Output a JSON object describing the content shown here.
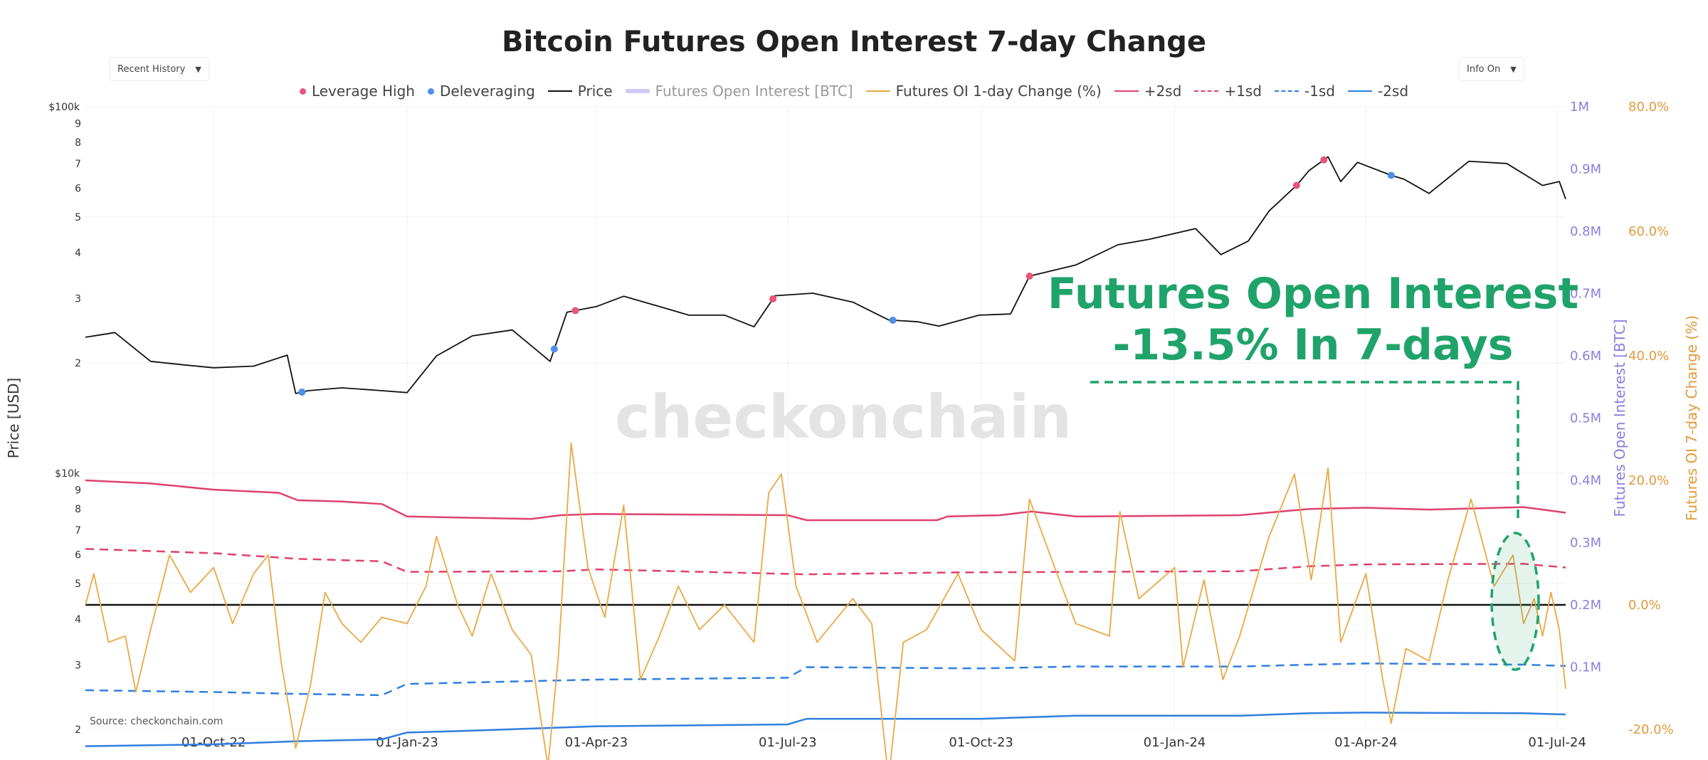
{
  "header": {
    "title": "Bitcoin Futures Open Interest 7-day Change"
  },
  "controls": {
    "left_dropdown": "Recent History",
    "right_dropdown": "Info On"
  },
  "legend": [
    {
      "label": "Leverage High",
      "kind": "dot",
      "color": "#e8557a"
    },
    {
      "label": "Deleveraging",
      "kind": "dot",
      "color": "#4f8fe6"
    },
    {
      "label": "Price",
      "kind": "line",
      "color": "#111111"
    },
    {
      "label": "Futures Open Interest [BTC]",
      "kind": "band",
      "color": "#cfc9f2",
      "muted": true
    },
    {
      "label": "Futures OI 1-day Change (%)",
      "kind": "line",
      "color": "#eaa844"
    },
    {
      "label": "+2sd",
      "kind": "line",
      "color": "#e0416d"
    },
    {
      "label": "+1sd",
      "kind": "dash",
      "color": "#e0416d"
    },
    {
      "label": "-1sd",
      "kind": "dash",
      "color": "#2f7fe0"
    },
    {
      "label": "-2sd",
      "kind": "line",
      "color": "#2f7fe0"
    }
  ],
  "annotation": {
    "line1": "Futures Open Interest",
    "line2": "-13.5% In 7-days",
    "color": "#1fa36a"
  },
  "watermark": "checkonchain",
  "source": "Source: checkonchain.com",
  "colors": {
    "price": "#111111",
    "oi_change": "#eaa844",
    "plus2": "#e0416d",
    "minus2": "#2f7fe0",
    "oi_axis": "#8a7fe0",
    "pct_axis": "#e29a3a"
  },
  "chart_data": {
    "type": "line",
    "x_ticks": [
      "01-Oct-22",
      "01-Jan-23",
      "01-Apr-23",
      "01-Jul-23",
      "01-Oct-23",
      "01-Jan-24",
      "01-Apr-24",
      "01-Jul-24"
    ],
    "x_range": [
      "2022-08-01",
      "2024-07-05"
    ],
    "y_left": {
      "label": "Price [USD]",
      "scale": "log",
      "range": [
        2000,
        100000
      ],
      "tick_labels": [
        {
          "v": 100000,
          "t": "$100k"
        },
        {
          "v": 90000,
          "t": "9"
        },
        {
          "v": 80000,
          "t": "8"
        },
        {
          "v": 70000,
          "t": "7"
        },
        {
          "v": 60000,
          "t": "6"
        },
        {
          "v": 50000,
          "t": "5"
        },
        {
          "v": 40000,
          "t": "4"
        },
        {
          "v": 30000,
          "t": "3"
        },
        {
          "v": 20000,
          "t": "2"
        },
        {
          "v": 10000,
          "t": "$10k"
        },
        {
          "v": 9000,
          "t": "9"
        },
        {
          "v": 8000,
          "t": "8"
        },
        {
          "v": 7000,
          "t": "7"
        },
        {
          "v": 6000,
          "t": "6"
        },
        {
          "v": 5000,
          "t": "5"
        },
        {
          "v": 4000,
          "t": "4"
        },
        {
          "v": 3000,
          "t": "3"
        },
        {
          "v": 2000,
          "t": "2"
        }
      ]
    },
    "y_right1": {
      "label": "Futures Open Interest [BTC]",
      "range": [
        0,
        1000000
      ],
      "ticks": [
        "0.1M",
        "0.2M",
        "0.3M",
        "0.4M",
        "0.5M",
        "0.6M",
        "0.7M",
        "0.8M",
        "0.9M",
        "1M"
      ]
    },
    "y_right2": {
      "label": "Futures OI 7-day Change (%)",
      "range": [
        -20,
        80
      ],
      "ticks": [
        "-20.0%",
        "0.0%",
        "20.0%",
        "40.0%",
        "60.0%",
        "80.0%"
      ]
    },
    "price": [
      [
        "2022-08-01",
        23500
      ],
      [
        "2022-08-15",
        24200
      ],
      [
        "2022-09-01",
        20200
      ],
      [
        "2022-09-15",
        19800
      ],
      [
        "2022-10-01",
        19400
      ],
      [
        "2022-10-20",
        19600
      ],
      [
        "2022-11-05",
        21000
      ],
      [
        "2022-11-09",
        16500
      ],
      [
        "2022-11-15",
        16800
      ],
      [
        "2022-12-01",
        17100
      ],
      [
        "2022-12-20",
        16800
      ],
      [
        "2023-01-01",
        16600
      ],
      [
        "2023-01-15",
        20900
      ],
      [
        "2023-02-01",
        23700
      ],
      [
        "2023-02-20",
        24600
      ],
      [
        "2023-03-10",
        20200
      ],
      [
        "2023-03-18",
        27500
      ],
      [
        "2023-04-01",
        28500
      ],
      [
        "2023-04-14",
        30400
      ],
      [
        "2023-05-01",
        28500
      ],
      [
        "2023-05-15",
        27000
      ],
      [
        "2023-06-01",
        27000
      ],
      [
        "2023-06-15",
        25100
      ],
      [
        "2023-06-25",
        30500
      ],
      [
        "2023-07-13",
        31000
      ],
      [
        "2023-08-01",
        29300
      ],
      [
        "2023-08-18",
        26200
      ],
      [
        "2023-09-01",
        25900
      ],
      [
        "2023-09-11",
        25200
      ],
      [
        "2023-09-30",
        27000
      ],
      [
        "2023-10-15",
        27200
      ],
      [
        "2023-10-24",
        34500
      ],
      [
        "2023-11-15",
        37000
      ],
      [
        "2023-12-05",
        42000
      ],
      [
        "2023-12-20",
        43500
      ],
      [
        "2024-01-11",
        46500
      ],
      [
        "2024-01-23",
        39500
      ],
      [
        "2024-02-05",
        43000
      ],
      [
        "2024-02-15",
        52000
      ],
      [
        "2024-02-28",
        61000
      ],
      [
        "2024-03-05",
        67000
      ],
      [
        "2024-03-14",
        73000
      ],
      [
        "2024-03-20",
        62500
      ],
      [
        "2024-03-28",
        70500
      ],
      [
        "2024-04-13",
        65000
      ],
      [
        "2024-04-19",
        63500
      ],
      [
        "2024-05-01",
        58000
      ],
      [
        "2024-05-20",
        71000
      ],
      [
        "2024-06-07",
        70000
      ],
      [
        "2024-06-24",
        61000
      ],
      [
        "2024-07-02",
        62500
      ],
      [
        "2024-07-05",
        56000
      ]
    ],
    "plus2sd": [
      [
        "2022-08-01",
        400000
      ],
      [
        "2022-09-01",
        395000
      ],
      [
        "2022-10-01",
        385000
      ],
      [
        "2022-11-01",
        380000
      ],
      [
        "2022-11-10",
        368000
      ],
      [
        "2022-12-01",
        366000
      ],
      [
        "2022-12-20",
        362000
      ],
      [
        "2023-01-01",
        342000
      ],
      [
        "2023-03-01",
        338000
      ],
      [
        "2023-03-15",
        344000
      ],
      [
        "2023-04-01",
        346000
      ],
      [
        "2023-07-01",
        344000
      ],
      [
        "2023-07-10",
        336000
      ],
      [
        "2023-09-10",
        336000
      ],
      [
        "2023-09-15",
        342000
      ],
      [
        "2023-10-10",
        344000
      ],
      [
        "2023-10-25",
        350000
      ],
      [
        "2023-11-15",
        342000
      ],
      [
        "2024-02-01",
        344000
      ],
      [
        "2024-03-05",
        354000
      ],
      [
        "2024-04-01",
        356000
      ],
      [
        "2024-05-01",
        353000
      ],
      [
        "2024-06-15",
        357000
      ],
      [
        "2024-07-05",
        348000
      ]
    ],
    "plus1sd": [
      [
        "2022-08-01",
        290000
      ],
      [
        "2022-10-01",
        283000
      ],
      [
        "2022-11-10",
        274000
      ],
      [
        "2022-12-20",
        270000
      ],
      [
        "2023-01-01",
        253000
      ],
      [
        "2023-03-15",
        254000
      ],
      [
        "2023-04-01",
        257000
      ],
      [
        "2023-07-10",
        249000
      ],
      [
        "2023-09-15",
        252000
      ],
      [
        "2023-11-15",
        253000
      ],
      [
        "2024-02-01",
        254000
      ],
      [
        "2024-03-05",
        262000
      ],
      [
        "2024-04-01",
        265000
      ],
      [
        "2024-06-15",
        266000
      ],
      [
        "2024-07-05",
        260000
      ]
    ],
    "minus1sd": [
      [
        "2022-08-01",
        63000
      ],
      [
        "2022-10-01",
        60000
      ],
      [
        "2022-11-10",
        57000
      ],
      [
        "2022-12-20",
        55000
      ],
      [
        "2023-01-01",
        73000
      ],
      [
        "2023-04-01",
        80000
      ],
      [
        "2023-07-01",
        83000
      ],
      [
        "2023-07-10",
        100000
      ],
      [
        "2023-10-01",
        98000
      ],
      [
        "2023-11-15",
        101000
      ],
      [
        "2024-02-01",
        101000
      ],
      [
        "2024-03-05",
        104000
      ],
      [
        "2024-04-01",
        106000
      ],
      [
        "2024-06-15",
        104000
      ],
      [
        "2024-07-05",
        102000
      ]
    ],
    "minus2sd": [
      [
        "2022-08-01",
        -27000
      ],
      [
        "2022-10-01",
        -24000
      ],
      [
        "2022-11-10",
        -19000
      ],
      [
        "2022-12-20",
        -16000
      ],
      [
        "2023-01-01",
        -5000
      ],
      [
        "2023-02-01",
        -2000
      ],
      [
        "2023-04-01",
        5000
      ],
      [
        "2023-07-01",
        8000
      ],
      [
        "2023-07-10",
        17000
      ],
      [
        "2023-10-01",
        17000
      ],
      [
        "2023-11-15",
        22000
      ],
      [
        "2024-02-01",
        22000
      ],
      [
        "2024-03-05",
        26000
      ],
      [
        "2024-04-01",
        27000
      ],
      [
        "2024-06-15",
        26000
      ],
      [
        "2024-07-05",
        24000
      ]
    ],
    "oi_7d_change_pct": [
      [
        "2022-08-01",
        0
      ],
      [
        "2022-08-05",
        5
      ],
      [
        "2022-08-12",
        -6
      ],
      [
        "2022-08-20",
        -5
      ],
      [
        "2022-08-25",
        -14
      ],
      [
        "2022-09-01",
        -4
      ],
      [
        "2022-09-10",
        8
      ],
      [
        "2022-09-20",
        2
      ],
      [
        "2022-10-01",
        6
      ],
      [
        "2022-10-10",
        -3
      ],
      [
        "2022-10-20",
        5
      ],
      [
        "2022-10-27",
        8
      ],
      [
        "2022-11-02",
        -9
      ],
      [
        "2022-11-09",
        -23
      ],
      [
        "2022-11-16",
        -13
      ],
      [
        "2022-11-23",
        2
      ],
      [
        "2022-12-01",
        -3
      ],
      [
        "2022-12-10",
        -6
      ],
      [
        "2022-12-20",
        -2
      ],
      [
        "2023-01-01",
        -3
      ],
      [
        "2023-01-10",
        3
      ],
      [
        "2023-01-15",
        11
      ],
      [
        "2023-01-25",
        0
      ],
      [
        "2023-02-01",
        -5
      ],
      [
        "2023-02-10",
        5
      ],
      [
        "2023-02-20",
        -4
      ],
      [
        "2023-03-01",
        -8
      ],
      [
        "2023-03-09",
        -26
      ],
      [
        "2023-03-14",
        -8
      ],
      [
        "2023-03-20",
        26
      ],
      [
        "2023-03-28",
        6
      ],
      [
        "2023-04-05",
        -2
      ],
      [
        "2023-04-14",
        16
      ],
      [
        "2023-04-22",
        -12
      ],
      [
        "2023-05-01",
        -5
      ],
      [
        "2023-05-10",
        3
      ],
      [
        "2023-05-20",
        -4
      ],
      [
        "2023-06-01",
        0
      ],
      [
        "2023-06-15",
        -6
      ],
      [
        "2023-06-22",
        18
      ],
      [
        "2023-06-28",
        21
      ],
      [
        "2023-07-05",
        3
      ],
      [
        "2023-07-15",
        -6
      ],
      [
        "2023-08-01",
        1
      ],
      [
        "2023-08-10",
        -3
      ],
      [
        "2023-08-18",
        -28
      ],
      [
        "2023-08-25",
        -6
      ],
      [
        "2023-09-05",
        -4
      ],
      [
        "2023-09-20",
        5
      ],
      [
        "2023-10-01",
        -4
      ],
      [
        "2023-10-17",
        -9
      ],
      [
        "2023-10-24",
        17
      ],
      [
        "2023-11-05",
        6
      ],
      [
        "2023-11-15",
        -3
      ],
      [
        "2023-12-01",
        -5
      ],
      [
        "2023-12-06",
        15
      ],
      [
        "2023-12-15",
        1
      ],
      [
        "2024-01-01",
        6
      ],
      [
        "2024-01-05",
        -10
      ],
      [
        "2024-01-15",
        4
      ],
      [
        "2024-01-24",
        -12
      ],
      [
        "2024-02-01",
        -5
      ],
      [
        "2024-02-15",
        11
      ],
      [
        "2024-02-27",
        21
      ],
      [
        "2024-03-06",
        4
      ],
      [
        "2024-03-14",
        22
      ],
      [
        "2024-03-20",
        -6
      ],
      [
        "2024-04-01",
        5
      ],
      [
        "2024-04-09",
        -12
      ],
      [
        "2024-04-13",
        -19
      ],
      [
        "2024-04-20",
        -7
      ],
      [
        "2024-05-01",
        -9
      ],
      [
        "2024-05-10",
        4
      ],
      [
        "2024-05-21",
        17
      ],
      [
        "2024-06-01",
        3
      ],
      [
        "2024-06-10",
        8
      ],
      [
        "2024-06-15",
        -3
      ],
      [
        "2024-06-20",
        1
      ],
      [
        "2024-06-24",
        -5
      ],
      [
        "2024-06-28",
        2
      ],
      [
        "2024-07-02",
        -4
      ],
      [
        "2024-07-05",
        -13.5
      ]
    ],
    "leverage_high_dates": [
      "2022-11-12",
      "2023-03-22",
      "2023-06-24",
      "2023-10-24",
      "2024-02-28",
      "2024-03-12"
    ],
    "deleveraging_dates": [
      "2022-11-12",
      "2023-03-12",
      "2023-08-20",
      "2024-04-13"
    ],
    "grid": true,
    "legend_position": "top-center"
  }
}
